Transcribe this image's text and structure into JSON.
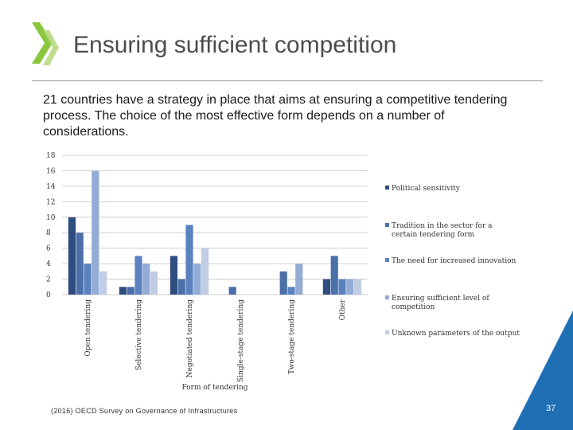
{
  "header": {
    "title": "Ensuring sufficient competition",
    "subtitle": "21 countries have a strategy in place that aims at ensuring a competitive tendering process. The choice of the most effective form depends on a number of considerations."
  },
  "footer": {
    "source": "(2016) OECD Survey on Governance of Infrastructures",
    "page_number": "37"
  },
  "colors": {
    "brand_green": "#8cc63f",
    "corner_blue": "#1f6fb5",
    "title_text": "#4d4d4d"
  },
  "chart_data": {
    "type": "bar",
    "title": "",
    "xlabel": "Form of tendering",
    "ylabel": "",
    "ylim": [
      0,
      18
    ],
    "yticks": [
      0,
      2,
      4,
      6,
      8,
      10,
      12,
      14,
      16,
      18
    ],
    "grid": true,
    "legend_position": "right",
    "categories": [
      "Open tendering",
      "Selective tendering",
      "Negotiated tendering",
      "Single-stage tendering",
      "Two-stage tendering",
      "Other"
    ],
    "series": [
      {
        "name": "Political sensitivity",
        "color": "#2f4d7f",
        "values": [
          10,
          1,
          5,
          0,
          0,
          2
        ]
      },
      {
        "name": "Tradition in the sector for a certain tendering form",
        "color": "#4b6fa8",
        "values": [
          8,
          1,
          2,
          1,
          3,
          5
        ]
      },
      {
        "name": "The need for increased innovation",
        "color": "#5b82c0",
        "values": [
          4,
          5,
          9,
          0,
          1,
          2
        ]
      },
      {
        "name": "Ensuring sufficient level of competition",
        "color": "#93acd6",
        "values": [
          16,
          4,
          4,
          0,
          4,
          2
        ]
      },
      {
        "name": "Unknown parameters of the output",
        "color": "#c0cde4",
        "values": [
          3,
          3,
          6,
          0,
          0,
          2
        ]
      }
    ]
  }
}
